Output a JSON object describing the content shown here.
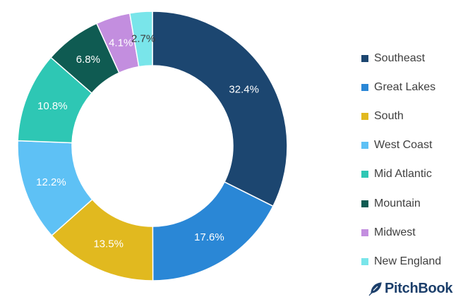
{
  "chart_data": {
    "type": "pie",
    "donut": true,
    "title": "",
    "legend_position": "right",
    "slices": [
      {
        "name": "Southeast",
        "value": 32.4,
        "label": "32.4%",
        "color": "#1c4670",
        "label_color": "#ffffff"
      },
      {
        "name": "Great Lakes",
        "value": 17.6,
        "label": "17.6%",
        "color": "#2a87d6",
        "label_color": "#ffffff"
      },
      {
        "name": "South",
        "value": 13.5,
        "label": "13.5%",
        "color": "#e1b91f",
        "label_color": "#ffffff"
      },
      {
        "name": "West Coast",
        "value": 12.2,
        "label": "12.2%",
        "color": "#5ec1f5",
        "label_color": "#ffffff"
      },
      {
        "name": "Mid Atlantic",
        "value": 10.8,
        "label": "10.8%",
        "color": "#2ec7b4",
        "label_color": "#ffffff"
      },
      {
        "name": "Mountain",
        "value": 6.8,
        "label": "6.8%",
        "color": "#0f5b52",
        "label_color": "#ffffff"
      },
      {
        "name": "Midwest",
        "value": 4.1,
        "label": "4.1%",
        "color": "#c38edf",
        "label_color": "#ffffff"
      },
      {
        "name": "New England",
        "value": 2.7,
        "label": "2.7%",
        "color": "#79e5ea",
        "label_color": "#3a3a3a"
      }
    ]
  },
  "brand": {
    "name": "PitchBook",
    "icon": "feather-icon",
    "color": "#1c3f6b"
  }
}
